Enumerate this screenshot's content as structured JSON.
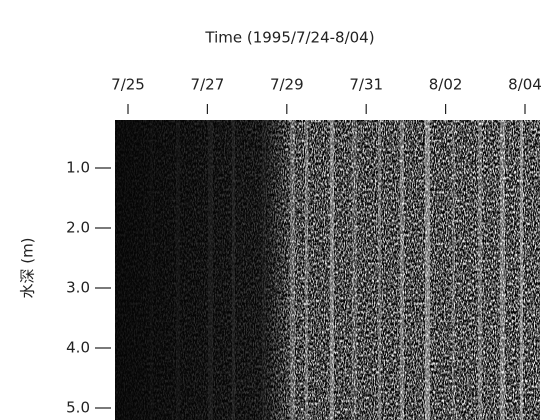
{
  "chart_data": {
    "type": "heatmap",
    "title": "Time (1995/7/24-8/04)",
    "ylabel": "水深 (m)",
    "xticks": [
      "7/25",
      "7/27",
      "7/29",
      "7/31",
      "8/02",
      "8/04"
    ],
    "ylim": [
      0.2,
      5.2
    ],
    "yticks": [
      {
        "value": 1,
        "label": "1.0"
      },
      {
        "value": 2,
        "label": "2.0"
      },
      {
        "value": 3,
        "label": "3.0"
      },
      {
        "value": 4,
        "label": "4.0"
      },
      {
        "value": 5,
        "label": "5.0"
      }
    ]
  }
}
